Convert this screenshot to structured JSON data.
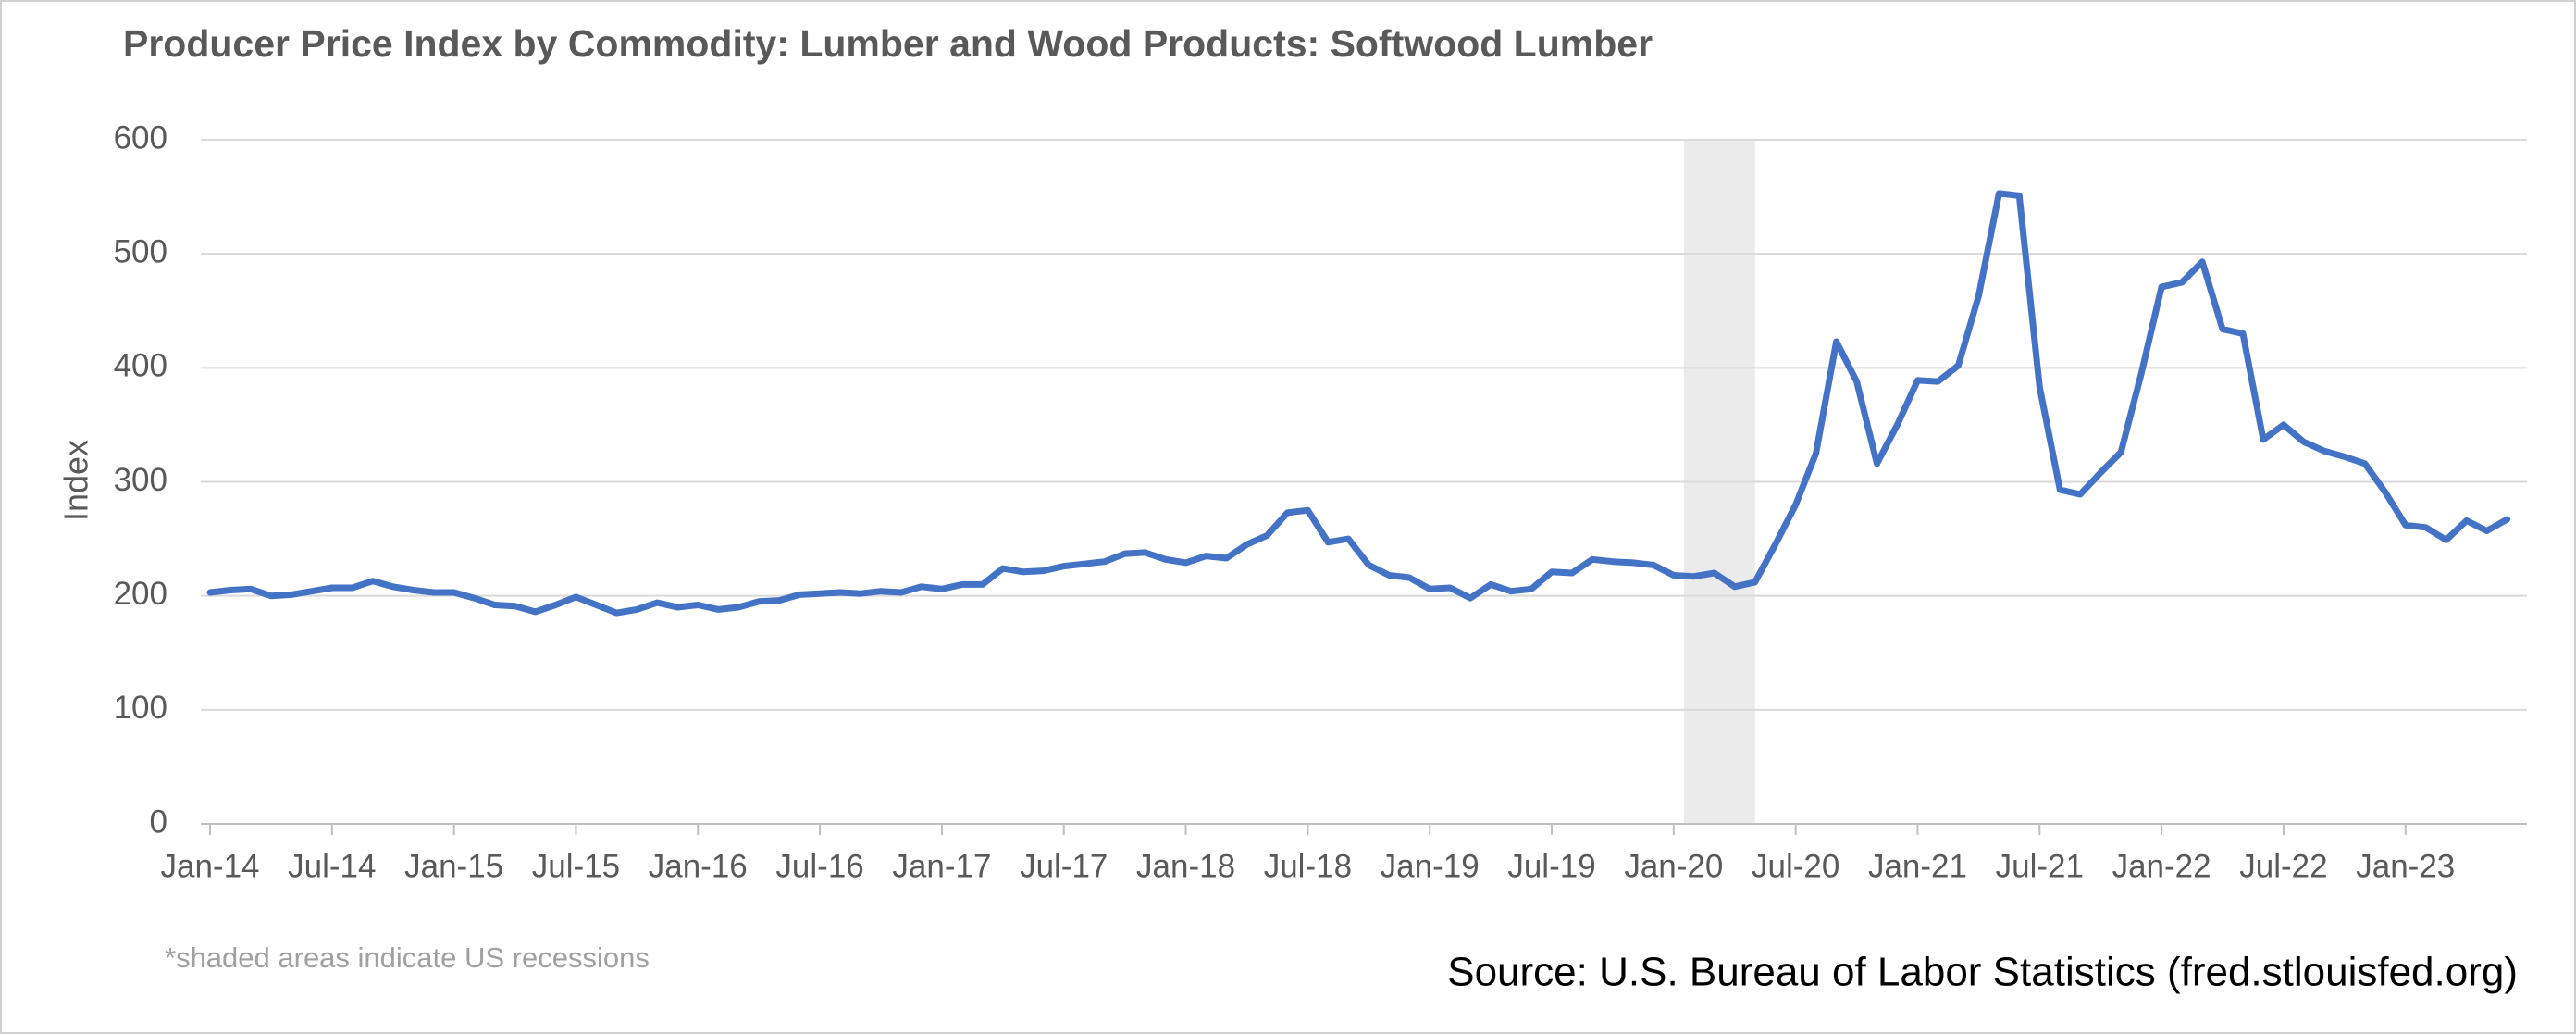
{
  "chart_data": {
    "type": "line",
    "title": "Producer Price Index by Commodity: Lumber and Wood Products: Softwood Lumber",
    "y_label": "Index",
    "note": "*shaded areas indicate US recessions",
    "source": "Source: U.S. Bureau of Labor Statistics (fred.stlouisfed.org)",
    "categories": [
      "Jan-14",
      null,
      null,
      null,
      null,
      null,
      "Jul-14",
      null,
      null,
      null,
      null,
      null,
      "Jan-15",
      null,
      null,
      null,
      null,
      null,
      "Jul-15",
      null,
      null,
      null,
      null,
      null,
      "Jan-16",
      null,
      null,
      null,
      null,
      null,
      "Jul-16",
      null,
      null,
      null,
      null,
      null,
      "Jan-17",
      null,
      null,
      null,
      null,
      null,
      "Jul-17",
      null,
      null,
      null,
      null,
      null,
      "Jan-18",
      null,
      null,
      null,
      null,
      null,
      "Jul-18",
      null,
      null,
      null,
      null,
      null,
      "Jan-19",
      null,
      null,
      null,
      null,
      null,
      "Jul-19",
      null,
      null,
      null,
      null,
      null,
      "Jan-20",
      null,
      null,
      null,
      null,
      null,
      "Jul-20",
      null,
      null,
      null,
      null,
      null,
      "Jan-21",
      null,
      null,
      null,
      null,
      null,
      "Jul-21",
      null,
      null,
      null,
      null,
      null,
      "Jan-22",
      null,
      null,
      null,
      null,
      null,
      "Jul-22",
      null,
      null,
      null,
      null,
      null,
      "Jan-23",
      null,
      null,
      null,
      null,
      null
    ],
    "series": [
      {
        "name": "Softwood Lumber",
        "color": "#4472c4",
        "values": [
          203,
          205,
          206,
          200,
          201,
          204,
          207,
          207,
          213,
          208,
          205,
          203,
          203,
          198,
          192,
          191,
          186,
          192,
          199,
          192,
          185,
          188,
          194,
          190,
          192,
          188,
          190,
          195,
          196,
          201,
          202,
          203,
          202,
          204,
          203,
          208,
          206,
          210,
          210,
          224,
          221,
          222,
          226,
          228,
          230,
          237,
          238,
          232,
          229,
          235,
          233,
          245,
          253,
          273,
          275,
          247,
          250,
          227,
          218,
          216,
          206,
          207,
          198,
          210,
          204,
          206,
          221,
          220,
          232,
          230,
          229,
          227,
          218,
          217,
          220,
          208,
          212,
          245,
          280,
          325,
          423,
          388,
          316,
          350,
          389,
          388,
          402,
          463,
          553,
          551,
          383,
          293,
          289,
          308,
          326,
          395,
          471,
          475,
          493,
          434,
          430,
          337,
          350,
          335,
          327,
          322,
          316,
          291,
          262,
          260,
          249,
          266,
          257,
          267
        ]
      }
    ],
    "shaded": [
      [
        73,
        76
      ]
    ],
    "shade_color": "#ebebeb",
    "ylim": [
      0,
      600
    ],
    "yticks": [
      0,
      100,
      200,
      300,
      400,
      500,
      600
    ],
    "grid": true
  }
}
